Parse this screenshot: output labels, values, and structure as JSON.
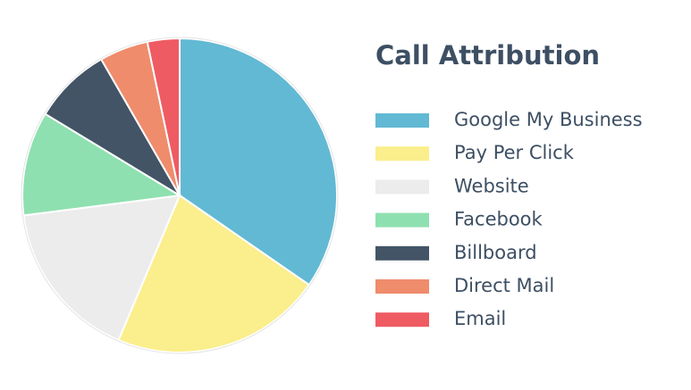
{
  "chart_data": {
    "type": "pie",
    "title": "Call Attribution",
    "categories": [
      "Google My Business",
      "Pay Per Click",
      "Website",
      "Facebook",
      "Billboard",
      "Direct Mail",
      "Email"
    ],
    "values": [
      34.6,
      21.7,
      16.6,
      10.7,
      8.0,
      5.0,
      3.3
    ],
    "colors": [
      "#62b9d4",
      "#fbee8c",
      "#ececec",
      "#8fe0b0",
      "#435466",
      "#ef8c6c",
      "#ef5b63"
    ],
    "legend": "right"
  }
}
